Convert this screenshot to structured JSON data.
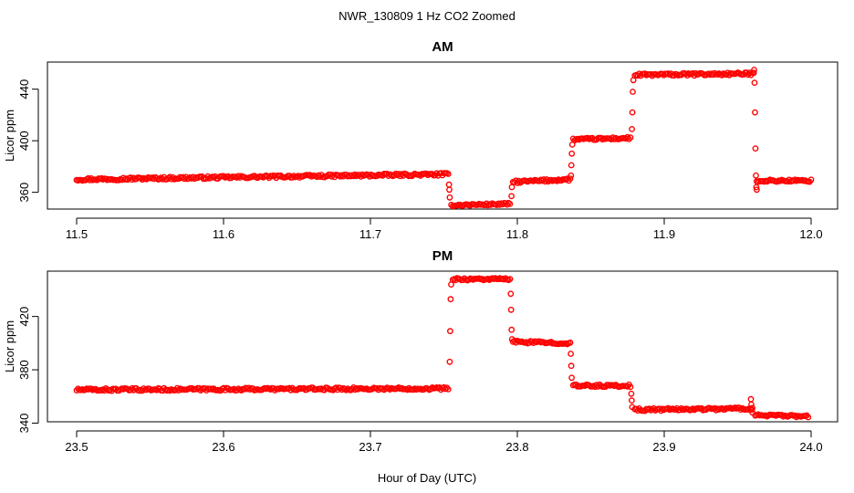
{
  "figure": {
    "title": "NWR_130809  1 Hz CO2 Zoomed",
    "xlabel": "Hour of Day (UTC)"
  },
  "colors": {
    "marker": "#ff0000",
    "axis": "#000000",
    "background": "#ffffff"
  },
  "chart_data": [
    {
      "type": "scatter",
      "title": "AM",
      "xlabel": "Hour of Day (UTC)",
      "ylabel": "Licor ppm",
      "xlim": [
        11.5,
        12.0
      ],
      "ylim": [
        347,
        461
      ],
      "x_ticks": [
        11.5,
        11.6,
        11.7,
        11.8,
        11.9,
        12.0
      ],
      "x_tick_labels": [
        "11.5",
        "11.6",
        "11.7",
        "11.8",
        "11.9",
        "12.0"
      ],
      "y_ticks": [
        360,
        400,
        440
      ],
      "y_tick_labels": [
        "360",
        "400",
        "440"
      ],
      "series": [
        {
          "name": "CO2",
          "marker": "open-circle",
          "segments": [
            {
              "x_start": 11.5,
              "x_end": 11.753,
              "y_start": 370,
              "y_end": 374,
              "noise": 1.0
            },
            {
              "x_start": 11.755,
              "x_end": 11.795,
              "y_start": 350,
              "y_end": 351,
              "noise": 0.8
            },
            {
              "x_start": 11.797,
              "x_end": 11.836,
              "y_start": 368,
              "y_end": 370,
              "noise": 1.0
            },
            {
              "x_start": 11.838,
              "x_end": 11.877,
              "y_start": 401,
              "y_end": 402,
              "noise": 0.9
            },
            {
              "x_start": 11.88,
              "x_end": 11.961,
              "y_start": 451,
              "y_end": 452,
              "noise": 1.0
            },
            {
              "x_start": 11.963,
              "x_end": 12.0,
              "y_start": 369,
              "y_end": 369,
              "noise": 0.9
            }
          ],
          "transition_points": [
            {
              "x": 11.7535,
              "y": 366
            },
            {
              "x": 11.7537,
              "y": 362
            },
            {
              "x": 11.754,
              "y": 356
            },
            {
              "x": 11.796,
              "y": 357
            },
            {
              "x": 11.7963,
              "y": 364
            },
            {
              "x": 11.8365,
              "y": 373
            },
            {
              "x": 11.8368,
              "y": 381
            },
            {
              "x": 11.8371,
              "y": 390
            },
            {
              "x": 11.8374,
              "y": 397
            },
            {
              "x": 11.878,
              "y": 409
            },
            {
              "x": 11.8783,
              "y": 422
            },
            {
              "x": 11.8786,
              "y": 438
            },
            {
              "x": 11.879,
              "y": 447
            },
            {
              "x": 11.9612,
              "y": 455
            },
            {
              "x": 11.9615,
              "y": 445
            },
            {
              "x": 11.9618,
              "y": 422
            },
            {
              "x": 11.9621,
              "y": 394
            },
            {
              "x": 11.9624,
              "y": 373
            },
            {
              "x": 11.9627,
              "y": 364
            },
            {
              "x": 11.963,
              "y": 362
            }
          ]
        }
      ]
    },
    {
      "type": "scatter",
      "title": "PM",
      "xlabel": "Hour of Day (UTC)",
      "ylabel": "Licor ppm",
      "xlim": [
        23.5,
        24.0
      ],
      "ylim": [
        341,
        454
      ],
      "x_ticks": [
        23.5,
        23.6,
        23.7,
        23.8,
        23.9,
        24.0
      ],
      "x_tick_labels": [
        "23.5",
        "23.6",
        "23.7",
        "23.8",
        "23.9",
        "24.0"
      ],
      "y_ticks": [
        340,
        380,
        420
      ],
      "y_tick_labels": [
        "340",
        "380",
        "420"
      ],
      "series": [
        {
          "name": "CO2",
          "marker": "open-circle",
          "segments": [
            {
              "x_start": 23.5,
              "x_end": 23.753,
              "y_start": 365,
              "y_end": 366,
              "noise": 1.0
            },
            {
              "x_start": 23.756,
              "x_end": 23.795,
              "y_start": 448,
              "y_end": 448,
              "noise": 0.9
            },
            {
              "x_start": 23.797,
              "x_end": 23.836,
              "y_start": 401,
              "y_end": 400,
              "noise": 0.9
            },
            {
              "x_start": 23.838,
              "x_end": 23.877,
              "y_start": 368,
              "y_end": 368,
              "noise": 0.9
            },
            {
              "x_start": 23.88,
              "x_end": 23.96,
              "y_start": 350,
              "y_end": 351,
              "noise": 1.0
            },
            {
              "x_start": 23.962,
              "x_end": 23.998,
              "y_start": 346,
              "y_end": 345,
              "noise": 0.8
            }
          ],
          "transition_points": [
            {
              "x": 23.754,
              "y": 386
            },
            {
              "x": 23.7543,
              "y": 409
            },
            {
              "x": 23.7546,
              "y": 433
            },
            {
              "x": 23.755,
              "y": 444
            },
            {
              "x": 23.7955,
              "y": 437
            },
            {
              "x": 23.7958,
              "y": 425
            },
            {
              "x": 23.7961,
              "y": 410
            },
            {
              "x": 23.7964,
              "y": 403
            },
            {
              "x": 23.8364,
              "y": 392
            },
            {
              "x": 23.8367,
              "y": 383
            },
            {
              "x": 23.837,
              "y": 374
            },
            {
              "x": 23.8776,
              "y": 362
            },
            {
              "x": 23.8779,
              "y": 357
            },
            {
              "x": 23.8782,
              "y": 352
            },
            {
              "x": 23.959,
              "y": 358
            },
            {
              "x": 23.9593,
              "y": 354
            },
            {
              "x": 23.9596,
              "y": 350
            },
            {
              "x": 23.96,
              "y": 348
            }
          ]
        }
      ]
    }
  ]
}
